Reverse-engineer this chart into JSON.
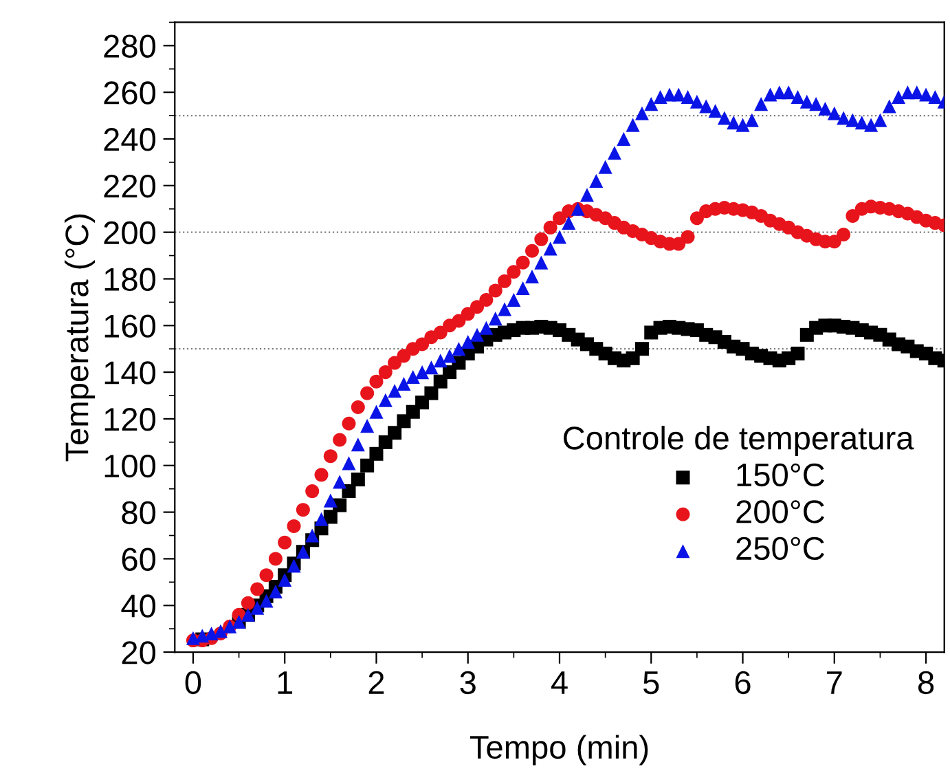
{
  "chart_data": {
    "type": "scatter",
    "xlabel": "Tempo (min)",
    "ylabel": "Temperatura (°C)",
    "legend_title": "Controle de temperatura",
    "legend": "lower right",
    "grid": false,
    "xlim": [
      -0.2,
      8.2
    ],
    "ylim": [
      20,
      290
    ],
    "xticks": [
      0,
      1,
      2,
      3,
      4,
      5,
      6,
      7,
      8
    ],
    "yticks": [
      20,
      40,
      60,
      80,
      100,
      120,
      140,
      160,
      180,
      200,
      220,
      240,
      260,
      280
    ],
    "x": [
      0,
      0.1,
      0.2,
      0.3,
      0.4,
      0.5,
      0.6,
      0.7,
      0.8,
      0.9,
      1.0,
      1.1,
      1.2,
      1.3,
      1.4,
      1.5,
      1.6,
      1.7,
      1.8,
      1.9,
      2.0,
      2.1,
      2.2,
      2.3,
      2.4,
      2.5,
      2.6,
      2.7,
      2.8,
      2.9,
      3.0,
      3.1,
      3.2,
      3.3,
      3.4,
      3.5,
      3.6,
      3.7,
      3.8,
      3.9,
      4.0,
      4.1,
      4.2,
      4.3,
      4.4,
      4.5,
      4.6,
      4.7,
      4.8,
      4.9,
      5.0,
      5.1,
      5.2,
      5.3,
      5.4,
      5.5,
      5.6,
      5.7,
      5.8,
      5.9,
      6.0,
      6.1,
      6.2,
      6.3,
      6.4,
      6.5,
      6.6,
      6.7,
      6.8,
      6.9,
      7.0,
      7.1,
      7.2,
      7.3,
      7.4,
      7.5,
      7.6,
      7.7,
      7.8,
      7.9,
      8.0,
      8.1,
      8.2
    ],
    "series": [
      {
        "name": "150°C",
        "color": "#000000",
        "marker": "square",
        "values": [
          null,
          25.5,
          null,
          null,
          null,
          33,
          36,
          40,
          44,
          48,
          53,
          58,
          63,
          68,
          73,
          78,
          83,
          89,
          94,
          100,
          105,
          110,
          114,
          119,
          123,
          127,
          131,
          136,
          140,
          144,
          148,
          151,
          154,
          156,
          157,
          158,
          159,
          159,
          159.5,
          159,
          158,
          156,
          154,
          152,
          150,
          148,
          146,
          145,
          146,
          150,
          157,
          159,
          159.5,
          159,
          158.5,
          158,
          156,
          155,
          153,
          151,
          150,
          148,
          147,
          146,
          145,
          146,
          148,
          156,
          159,
          160,
          160,
          159.5,
          159,
          158,
          157,
          156,
          154,
          152,
          151,
          149,
          148,
          146,
          145
        ]
      },
      {
        "name": "200°C",
        "color": "#e8141c",
        "marker": "circle",
        "values": [
          25,
          25,
          26,
          28,
          31,
          36,
          41,
          47,
          53,
          60,
          67,
          74,
          81,
          89,
          96,
          104,
          111,
          118,
          125,
          131,
          136,
          140,
          144,
          147,
          150,
          152,
          155,
          157,
          160,
          162,
          165,
          168,
          171,
          175,
          179,
          183,
          187,
          192,
          197,
          202,
          206,
          209,
          210,
          209,
          207.5,
          206,
          204,
          202,
          200.5,
          199,
          197.5,
          196,
          195,
          195,
          198,
          206,
          209,
          210,
          210.5,
          210,
          209.5,
          208.5,
          207,
          205,
          203.5,
          202,
          200,
          198.5,
          197,
          196,
          196,
          199,
          207,
          210,
          211,
          210.5,
          210,
          209,
          208,
          206.5,
          205,
          204,
          203
        ]
      },
      {
        "name": "250°C",
        "color": "#0a14e6",
        "marker": "triangle",
        "values": [
          26,
          27,
          28,
          29,
          31,
          33,
          36,
          39,
          42,
          46,
          51,
          57,
          63,
          70,
          77,
          85,
          93,
          101,
          109,
          117,
          123,
          128,
          132,
          135,
          138,
          140,
          142,
          145,
          147,
          150,
          153,
          156,
          159,
          163,
          167,
          171,
          176,
          181,
          187,
          193,
          198,
          204,
          210,
          216,
          222,
          228,
          234,
          240,
          246,
          251,
          255,
          258,
          259,
          259,
          258,
          256,
          254,
          252,
          249,
          247,
          246,
          248,
          255,
          259,
          260,
          260,
          258,
          256,
          255,
          253,
          251,
          249,
          248,
          247,
          246,
          248,
          254,
          258,
          260,
          260,
          259,
          258,
          256
        ]
      }
    ],
    "ref_lines": [
      {
        "axis": "y",
        "value": 150,
        "color": "#808080",
        "line_style": "dotted"
      },
      {
        "axis": "y",
        "value": 200,
        "color": "#808080",
        "line_style": "dotted"
      },
      {
        "axis": "y",
        "value": 250,
        "color": "#808080",
        "line_style": "dotted"
      }
    ]
  }
}
